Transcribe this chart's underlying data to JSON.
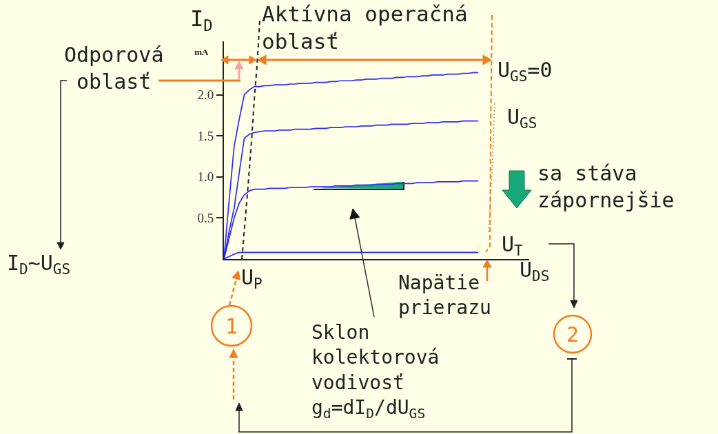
{
  "chart_data": {
    "type": "line",
    "ylabel": "I$_{D}$ mA",
    "xlabel": "U$_{DS}$",
    "categories": [
      null,
      null,
      null,
      null,
      null,
      null,
      null,
      null,
      null,
      null,
      null,
      null,
      null,
      null,
      null,
      null,
      null,
      null,
      null,
      null,
      null,
      null,
      null,
      null,
      null,
      null,
      null,
      null,
      null,
      null,
      null,
      null,
      null,
      null,
      null,
      null,
      null,
      null,
      null,
      null,
      null,
      null,
      null,
      null,
      null,
      null,
      null,
      null,
      null,
      null,
      null,
      null,
      null,
      null,
      null,
      null,
      null,
      null,
      null,
      null,
      null
    ],
    "series": [
      {
        "name": "U$_{GS}$=0",
        "color": "#2b2bff",
        "values": [
          0,
          0.7,
          1.37,
          1.7,
          2.0,
          2.06,
          2.1,
          2.1,
          2.11,
          2.11,
          2.12,
          2.12,
          2.12,
          2.13,
          2.13,
          2.14,
          2.14,
          2.14,
          2.15,
          2.15,
          2.15,
          2.16,
          2.16,
          2.17,
          2.17,
          2.17,
          2.18,
          2.18,
          2.19,
          2.19,
          2.19,
          2.2,
          2.2,
          2.2,
          2.21,
          2.21,
          2.22,
          2.22,
          2.22,
          2.23,
          2.23,
          2.24,
          2.24,
          2.24,
          2.25,
          2.25,
          2.25,
          2.26,
          2.26,
          2.27,
          2.27,
          null,
          null,
          null,
          null,
          null,
          null,
          null,
          null,
          null,
          null
        ]
      },
      {
        "name": "U$_{GS}$",
        "color": "#2b2bff",
        "values": [
          0,
          0.33,
          0.62,
          1.05,
          1.47,
          1.52,
          1.54,
          1.55,
          1.56,
          1.56,
          1.56,
          1.57,
          1.57,
          1.57,
          1.58,
          1.58,
          1.58,
          1.58,
          1.59,
          1.59,
          1.59,
          1.6,
          1.6,
          1.6,
          1.61,
          1.61,
          1.61,
          1.62,
          1.62,
          1.62,
          1.63,
          1.63,
          1.63,
          1.64,
          1.64,
          1.64,
          1.64,
          1.65,
          1.65,
          1.65,
          1.66,
          1.66,
          1.66,
          1.67,
          1.67,
          1.67,
          1.67,
          1.68,
          1.68,
          1.68,
          1.68,
          null,
          null,
          null,
          null,
          null,
          null,
          null,
          null,
          null,
          null
        ]
      },
      {
        "color": "#2b2bff",
        "values": [
          0,
          0.25,
          0.5,
          0.68,
          0.78,
          0.83,
          0.85,
          0.85,
          0.85,
          0.86,
          0.86,
          0.86,
          0.86,
          0.87,
          0.87,
          0.87,
          0.87,
          0.88,
          0.88,
          0.88,
          0.88,
          0.88,
          0.89,
          0.89,
          0.89,
          0.89,
          0.9,
          0.9,
          0.9,
          0.9,
          0.91,
          0.91,
          0.91,
          0.91,
          0.92,
          0.92,
          0.92,
          0.92,
          0.93,
          0.93,
          0.93,
          0.93,
          0.94,
          0.94,
          0.94,
          0.94,
          0.94,
          0.95,
          0.95,
          0.95,
          0.95,
          null,
          null,
          null,
          null,
          null,
          null,
          null,
          null,
          null,
          null
        ]
      },
      {
        "name": "U$_{T}$",
        "color": "#2b2bff",
        "values": [
          0,
          0.03,
          0.06,
          0.08,
          0.08,
          0.08,
          0.08,
          0.08,
          0.08,
          0.08,
          0.08,
          0.08,
          0.08,
          0.08,
          0.08,
          0.08,
          0.08,
          0.08,
          0.08,
          0.08,
          0.08,
          0.08,
          0.08,
          0.08,
          0.08,
          0.08,
          0.08,
          0.08,
          0.08,
          0.08,
          0.08,
          0.08,
          0.08,
          0.08,
          0.08,
          0.08,
          0.08,
          0.08,
          0.08,
          0.08,
          0.08,
          0.08,
          0.08,
          0.08,
          0.08,
          0.08,
          0.08,
          0.08,
          0.08,
          0.08,
          0.08,
          null,
          null,
          null,
          null,
          null,
          null,
          null,
          null,
          null,
          null
        ]
      }
    ],
    "ylim": [
      0,
      2.65
    ],
    "yticks": [
      0.5,
      {
        "value": 1,
        "label": "1.0"
      },
      1.5,
      {
        "value": 2,
        "label": "2.0"
      }
    ],
    "line_style": "solid",
    "annotations": [
      "Aktívna operačná oblasť",
      "Odporová oblasť",
      "I$_{D}$~U$_{GS}$",
      "sa stáva zápornejšie",
      "U$_{P}$",
      "Napätie prierazu",
      "Sklon kolektorová vodivosť g$_{d}$=dI$_{D}$/dU$_{GS}$",
      "1",
      "2"
    ]
  }
}
